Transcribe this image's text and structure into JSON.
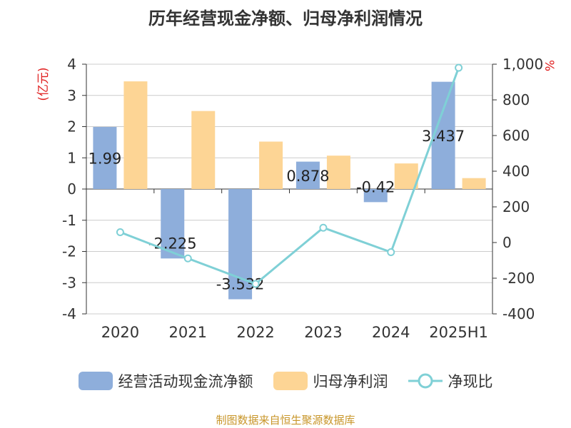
{
  "chart_data": {
    "type": "bar",
    "title": "历年经营现金净额、归母净利润情况",
    "source": "制图数据来自恒生聚源数据库",
    "categories": [
      "2020",
      "2021",
      "2022",
      "2023",
      "2024",
      "2025H1"
    ],
    "y_left": {
      "unit_label": "(亿元)",
      "ylim": [
        -4,
        4
      ],
      "ticks": [
        "4",
        "3",
        "2",
        "1",
        "0",
        "-1",
        "-2",
        "-3",
        "-4"
      ]
    },
    "y_right": {
      "unit_label": "%",
      "ylim": [
        -400,
        1000
      ],
      "ticks": [
        "1,000",
        "800",
        "600",
        "400",
        "200",
        "0",
        "-200",
        "-400"
      ]
    },
    "series": [
      {
        "name": "经营活动现金流净额",
        "kind": "bar",
        "axis": "left",
        "color": "#8eaedb",
        "values": [
          1.99,
          -2.225,
          -3.532,
          0.878,
          -0.42,
          3.437
        ],
        "labels": [
          "1.99",
          "-2.225",
          "-3.532",
          "0.878",
          "-0.42",
          "3.437"
        ]
      },
      {
        "name": "归母净利润",
        "kind": "bar",
        "axis": "left",
        "color": "#fdd595",
        "values": [
          3.45,
          2.5,
          1.52,
          1.07,
          0.82,
          0.35
        ]
      },
      {
        "name": "净现比",
        "kind": "line",
        "axis": "right",
        "color": "#7fd0d6",
        "values": [
          58,
          -89,
          -232,
          83,
          -54,
          980
        ]
      }
    ],
    "grid": true,
    "legend_position": "bottom"
  }
}
